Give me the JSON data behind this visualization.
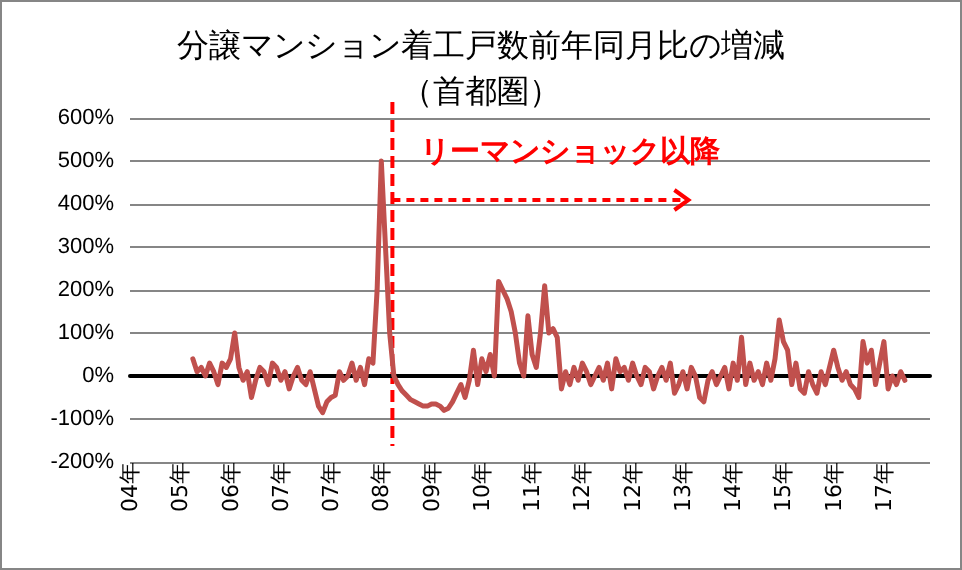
{
  "chart_data": {
    "type": "line",
    "title": "分譲マンション着工戸数前年同月比の増減",
    "subtitle": "（首都圏）",
    "categories": [
      "04年",
      null,
      null,
      null,
      null,
      null,
      null,
      null,
      null,
      null,
      null,
      null,
      "05年",
      null,
      null,
      null,
      null,
      null,
      null,
      null,
      null,
      null,
      null,
      null,
      "06年",
      null,
      null,
      null,
      null,
      null,
      null,
      null,
      null,
      null,
      null,
      null,
      "07年",
      null,
      null,
      null,
      null,
      null,
      null,
      null,
      null,
      null,
      null,
      null,
      "07年",
      null,
      null,
      null,
      null,
      null,
      null,
      null,
      null,
      null,
      null,
      null,
      "08年",
      null,
      null,
      null,
      null,
      null,
      null,
      null,
      null,
      null,
      null,
      null,
      "09年",
      null,
      null,
      null,
      null,
      null,
      null,
      null,
      null,
      null,
      null,
      null,
      "10年",
      null,
      null,
      null,
      null,
      null,
      null,
      null,
      null,
      null,
      null,
      null,
      "11年",
      null,
      null,
      null,
      null,
      null,
      null,
      null,
      null,
      null,
      null,
      null,
      "12年",
      null,
      null,
      null,
      null,
      null,
      null,
      null,
      null,
      null,
      null,
      null,
      "12年",
      null,
      null,
      null,
      null,
      null,
      null,
      null,
      null,
      null,
      null,
      null,
      "13年",
      null,
      null,
      null,
      null,
      null,
      null,
      null,
      null,
      null,
      null,
      null,
      "14年",
      null,
      null,
      null,
      null,
      null,
      null,
      null,
      null,
      null,
      null,
      null,
      "15年",
      null,
      null,
      null,
      null,
      null,
      null,
      null,
      null,
      null,
      null,
      null,
      "16年",
      null,
      null,
      null,
      null,
      null,
      null,
      null,
      null,
      null,
      null,
      null,
      "17年",
      null,
      null,
      null,
      null,
      null,
      null,
      null,
      null,
      null,
      null,
      null
    ],
    "series": [
      {
        "color": "#c0504d",
        "values": [
          null,
          null,
          null,
          null,
          null,
          null,
          null,
          null,
          null,
          null,
          null,
          null,
          null,
          null,
          null,
          40,
          10,
          20,
          0,
          30,
          10,
          -20,
          30,
          20,
          40,
          100,
          20,
          -10,
          10,
          -50,
          -10,
          20,
          10,
          -20,
          30,
          20,
          -10,
          10,
          -30,
          0,
          20,
          -10,
          -20,
          10,
          -30,
          -70,
          -85,
          -60,
          -50,
          -45,
          10,
          -10,
          0,
          30,
          -10,
          20,
          -20,
          40,
          30,
          200,
          500,
          300,
          100,
          0,
          -20,
          -35,
          -45,
          -55,
          -60,
          -65,
          -70,
          -70,
          -65,
          -65,
          -70,
          -80,
          -75,
          -60,
          -40,
          -20,
          -50,
          -10,
          60,
          -20,
          40,
          10,
          50,
          0,
          220,
          200,
          180,
          150,
          100,
          30,
          0,
          140,
          50,
          20,
          100,
          210,
          100,
          110,
          90,
          -30,
          10,
          -20,
          20,
          -10,
          30,
          10,
          -20,
          0,
          20,
          -10,
          30,
          -30,
          40,
          10,
          20,
          -10,
          30,
          0,
          -20,
          20,
          10,
          -30,
          0,
          20,
          -10,
          30,
          -40,
          -20,
          10,
          -30,
          20,
          0,
          -50,
          -60,
          -10,
          10,
          -20,
          0,
          20,
          -30,
          30,
          -10,
          90,
          -20,
          30,
          -10,
          10,
          -20,
          30,
          -10,
          40,
          130,
          80,
          60,
          -20,
          30,
          -30,
          -40,
          10,
          -20,
          -40,
          10,
          -20,
          20,
          60,
          20,
          -10,
          10,
          -20,
          -30,
          -50,
          80,
          30,
          60,
          -20,
          30,
          80,
          -30,
          0,
          -20,
          10,
          -10,
          null,
          null,
          null,
          null,
          null,
          null
        ]
      }
    ],
    "ylim": [
      -200,
      600
    ],
    "yticks": [
      {
        "value": -200,
        "label": "-200%"
      },
      {
        "value": -100,
        "label": "-100%"
      },
      {
        "value": 0,
        "label": "0%"
      },
      {
        "value": 100,
        "label": "100%"
      },
      {
        "value": 200,
        "label": "200%"
      },
      {
        "value": 300,
        "label": "300%"
      },
      {
        "value": 400,
        "label": "400%"
      },
      {
        "value": 500,
        "label": "500%"
      },
      {
        "value": 600,
        "label": "600%"
      }
    ],
    "grid": "y",
    "marker": "none",
    "line_style": "solid",
    "annotations": [
      "リーマンショック以降"
    ]
  }
}
